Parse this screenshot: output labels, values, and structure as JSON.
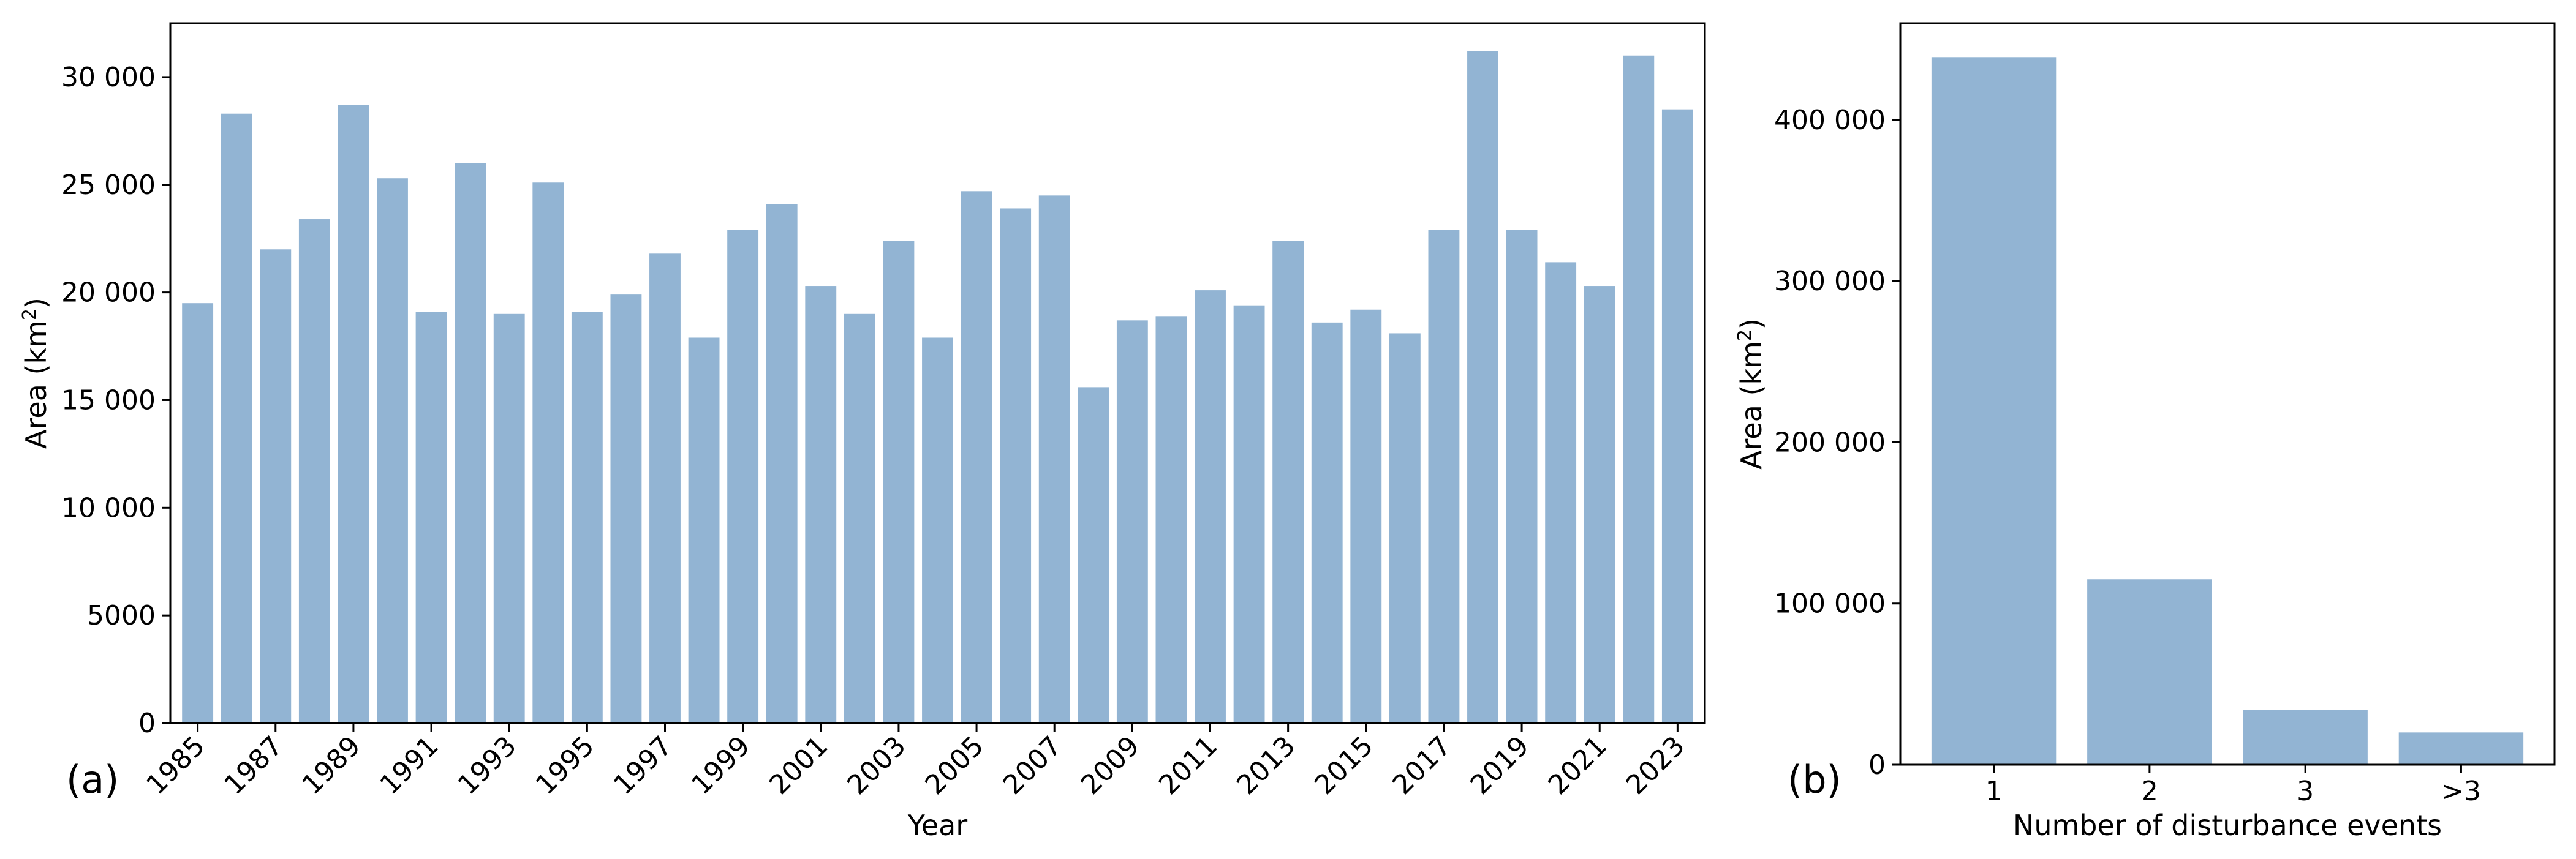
{
  "chart_data": [
    {
      "type": "bar",
      "panel_label": "(a)",
      "xlabel": "Year",
      "ylabel": "Area (km²)",
      "ylabel_base": "Area (km",
      "ylabel_sup": "2",
      "ylabel_end": ")",
      "ylim": [
        0,
        32500
      ],
      "yticks": [
        0,
        5000,
        10000,
        15000,
        20000,
        25000,
        30000
      ],
      "ytick_labels": [
        "0",
        "5000",
        "10 000",
        "15 000",
        "20 000",
        "25 000",
        "30 000"
      ],
      "categories": [
        "1985",
        "1986",
        "1987",
        "1988",
        "1989",
        "1990",
        "1991",
        "1992",
        "1993",
        "1994",
        "1995",
        "1996",
        "1997",
        "1998",
        "1999",
        "2000",
        "2001",
        "2002",
        "2003",
        "2004",
        "2005",
        "2006",
        "2007",
        "2008",
        "2009",
        "2010",
        "2011",
        "2012",
        "2013",
        "2014",
        "2015",
        "2016",
        "2017",
        "2018",
        "2019",
        "2020",
        "2021",
        "2022",
        "2023"
      ],
      "xtick_labels": [
        "1985",
        "1987",
        "1989",
        "1991",
        "1993",
        "1995",
        "1997",
        "1999",
        "2001",
        "2003",
        "2005",
        "2007",
        "2009",
        "2011",
        "2013",
        "2015",
        "2017",
        "2019",
        "2021",
        "2023"
      ],
      "values": [
        19500,
        28300,
        22000,
        23400,
        28700,
        25300,
        19100,
        26000,
        19000,
        25100,
        19100,
        19900,
        21800,
        17900,
        22900,
        24100,
        20300,
        19000,
        22400,
        17900,
        24700,
        23900,
        24500,
        15600,
        18700,
        18900,
        20100,
        19400,
        22400,
        18600,
        19200,
        18100,
        22900,
        31200,
        22900,
        21400,
        20300,
        31000,
        28500
      ],
      "bar_color": "#92b4d3",
      "grid": false
    },
    {
      "type": "bar",
      "panel_label": "(b)",
      "xlabel": "Number of disturbance events",
      "ylabel": "Area (km²)",
      "ylabel_base": "Area (km",
      "ylabel_sup": "2",
      "ylabel_end": ")",
      "ylim": [
        0,
        460000
      ],
      "yticks": [
        0,
        100000,
        200000,
        300000,
        400000
      ],
      "ytick_labels": [
        "0",
        "100 000",
        "200 000",
        "300 000",
        "400 000"
      ],
      "categories": [
        "1",
        "2",
        "3",
        ">3"
      ],
      "values": [
        439000,
        115000,
        34000,
        20000
      ],
      "bar_color": "#92b4d3",
      "grid": false
    }
  ]
}
